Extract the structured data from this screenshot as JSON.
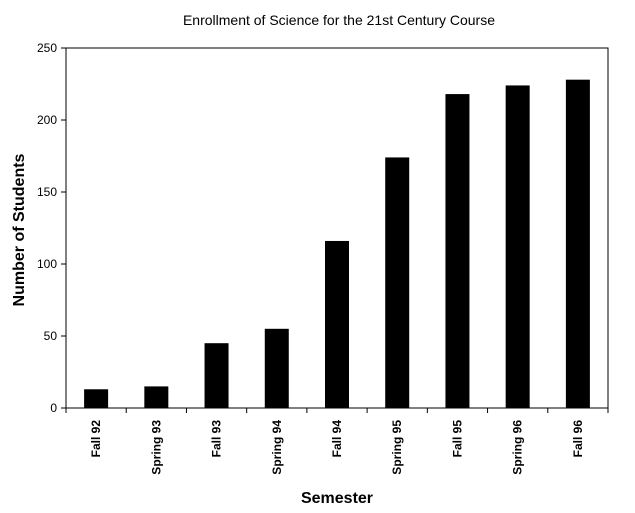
{
  "chart_data": {
    "type": "bar",
    "title": "Enrollment of Science for the 21st Century Course",
    "xlabel": "Semester",
    "ylabel": "Number of Students",
    "categories": [
      "Fall 92",
      "Spring 93",
      "Fall 93",
      "Spring 94",
      "Fall 94",
      "Spring 95",
      "Fall 95",
      "Spring 96",
      "Fall 96"
    ],
    "values": [
      13,
      15,
      45,
      55,
      116,
      174,
      218,
      224,
      228
    ],
    "ylim": [
      0,
      250
    ],
    "yticks": [
      0,
      50,
      100,
      150,
      200,
      250
    ],
    "bar_color": "#000000",
    "grid": false,
    "legend": "none"
  }
}
